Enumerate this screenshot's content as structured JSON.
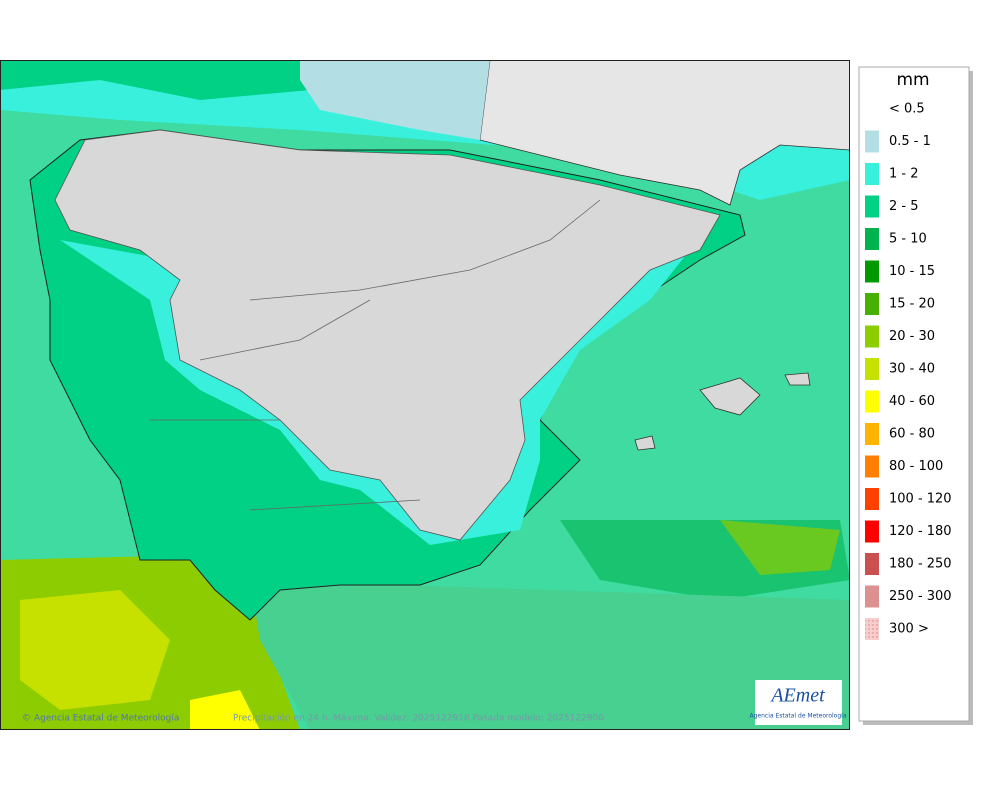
{
  "legend": {
    "title": "mm",
    "items": [
      {
        "label": "< 0.5",
        "color": "#ffffff"
      },
      {
        "label": "0.5 - 1",
        "color": "#b3dfe4"
      },
      {
        "label": "1 - 2",
        "color": "#38f0dc"
      },
      {
        "label": "2 - 5",
        "color": "#00d184"
      },
      {
        "label": "5 - 10",
        "color": "#00b34f"
      },
      {
        "label": "10 - 15",
        "color": "#009a00"
      },
      {
        "label": "15 - 20",
        "color": "#47b000"
      },
      {
        "label": "20 - 30",
        "color": "#8ccc00"
      },
      {
        "label": "30 - 40",
        "color": "#c6e000"
      },
      {
        "label": "40 - 60",
        "color": "#ffff00"
      },
      {
        "label": "60 - 80",
        "color": "#ffb300"
      },
      {
        "label": "80 - 100",
        "color": "#ff8000"
      },
      {
        "label": "100 - 120",
        "color": "#ff4000"
      },
      {
        "label": "120 - 180",
        "color": "#ff0000"
      },
      {
        "label": "180 - 250",
        "color": "#cc5050"
      },
      {
        "label": "250 - 300",
        "color": "#dc9090"
      },
      {
        "label": "300 >",
        "color": "#f6cccc"
      }
    ]
  },
  "footer": {
    "credit": "© Agencia Estatal de Meteorología",
    "caption": "Precipitación en 24 h. Máxima. Validez: 2025122918 Pasada modelo: 2025122900"
  },
  "logo": {
    "name": "AEmet",
    "subtitle": "Agencia Estatal de Meteorología"
  }
}
